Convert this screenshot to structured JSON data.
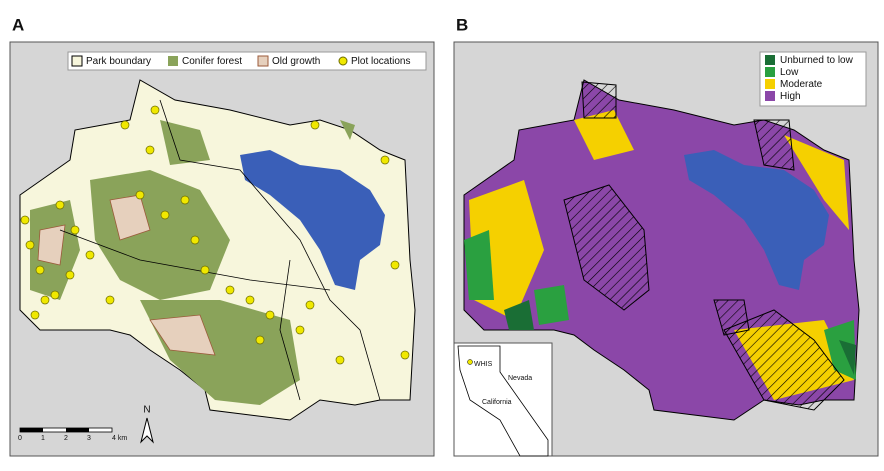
{
  "panel_a": {
    "label": "A",
    "legend": [
      "Park boundary",
      "Conifer forest",
      "Old growth",
      "Plot locations"
    ],
    "scale_bar": [
      "0",
      "1",
      "2",
      "3",
      "4 km"
    ],
    "north": "N"
  },
  "panel_b": {
    "label": "B",
    "legend": [
      "Unburned to low",
      "Low",
      "Moderate",
      "High"
    ],
    "inset": [
      "WHIS",
      "Nevada",
      "California"
    ]
  }
}
